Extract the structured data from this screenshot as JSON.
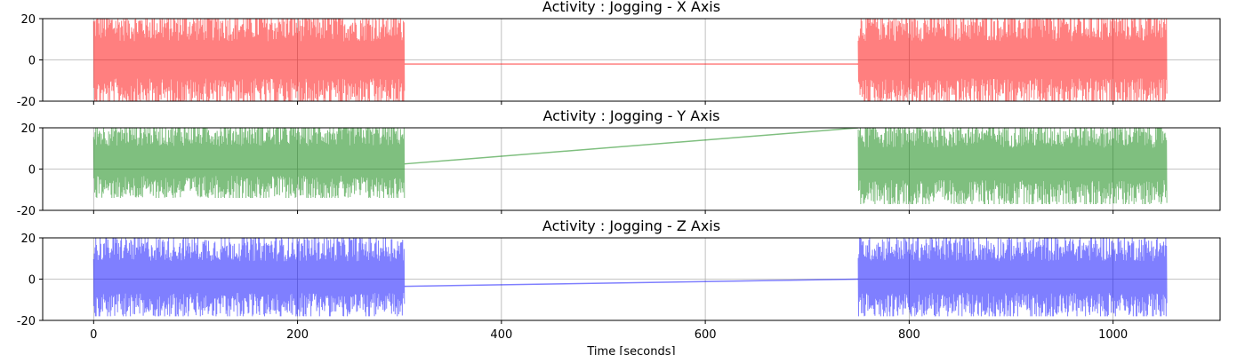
{
  "figure": {
    "xlabel": "Time [seconds]"
  },
  "chart_data": [
    {
      "type": "line",
      "title": "Activity : Jogging - X Axis",
      "color": "#ff0000",
      "xlim": [
        -50,
        1105
      ],
      "ylim": [
        -20,
        20
      ],
      "x_ticks": [
        0,
        200,
        400,
        600,
        800,
        1000
      ],
      "y_ticks": [
        -20,
        0,
        20
      ],
      "grid": true,
      "series": [
        {
          "segments": [
            {
              "x_start": 0,
              "x_end": 305,
              "y_min": -20,
              "y_max": 20
            },
            {
              "x_start": 750,
              "x_end": 1053,
              "y_min": -20,
              "y_max": 20
            }
          ],
          "bridge": {
            "x": [
              305,
              750
            ],
            "y": [
              -2,
              -2
            ]
          }
        }
      ],
      "x_tick_labels_visible": false
    },
    {
      "type": "line",
      "title": "Activity : Jogging - Y Axis",
      "color": "#008000",
      "xlim": [
        -50,
        1105
      ],
      "ylim": [
        -20,
        20
      ],
      "x_ticks": [
        0,
        200,
        400,
        600,
        800,
        1000
      ],
      "y_ticks": [
        -20,
        0,
        20
      ],
      "grid": true,
      "series": [
        {
          "segments": [
            {
              "x_start": 0,
              "x_end": 305,
              "y_min": -12,
              "y_max": 20
            },
            {
              "x_start": 750,
              "x_end": 1053,
              "y_min": -15,
              "y_max": 20
            }
          ],
          "bridge": {
            "x": [
              305,
              750
            ],
            "y": [
              2.5,
              20
            ]
          }
        }
      ],
      "x_tick_labels_visible": false
    },
    {
      "type": "line",
      "title": "Activity : Jogging - Z Axis",
      "color": "#0000ff",
      "xlim": [
        -50,
        1105
      ],
      "ylim": [
        -20,
        20
      ],
      "x_ticks": [
        0,
        200,
        400,
        600,
        800,
        1000
      ],
      "y_ticks": [
        -20,
        0,
        20
      ],
      "grid": true,
      "series": [
        {
          "segments": [
            {
              "x_start": 0,
              "x_end": 305,
              "y_min": -16,
              "y_max": 18
            },
            {
              "x_start": 750,
              "x_end": 1053,
              "y_min": -16,
              "y_max": 18
            }
          ],
          "bridge": {
            "x": [
              305,
              750
            ],
            "y": [
              -3.5,
              0
            ]
          }
        }
      ],
      "x_tick_labels_visible": true
    }
  ]
}
